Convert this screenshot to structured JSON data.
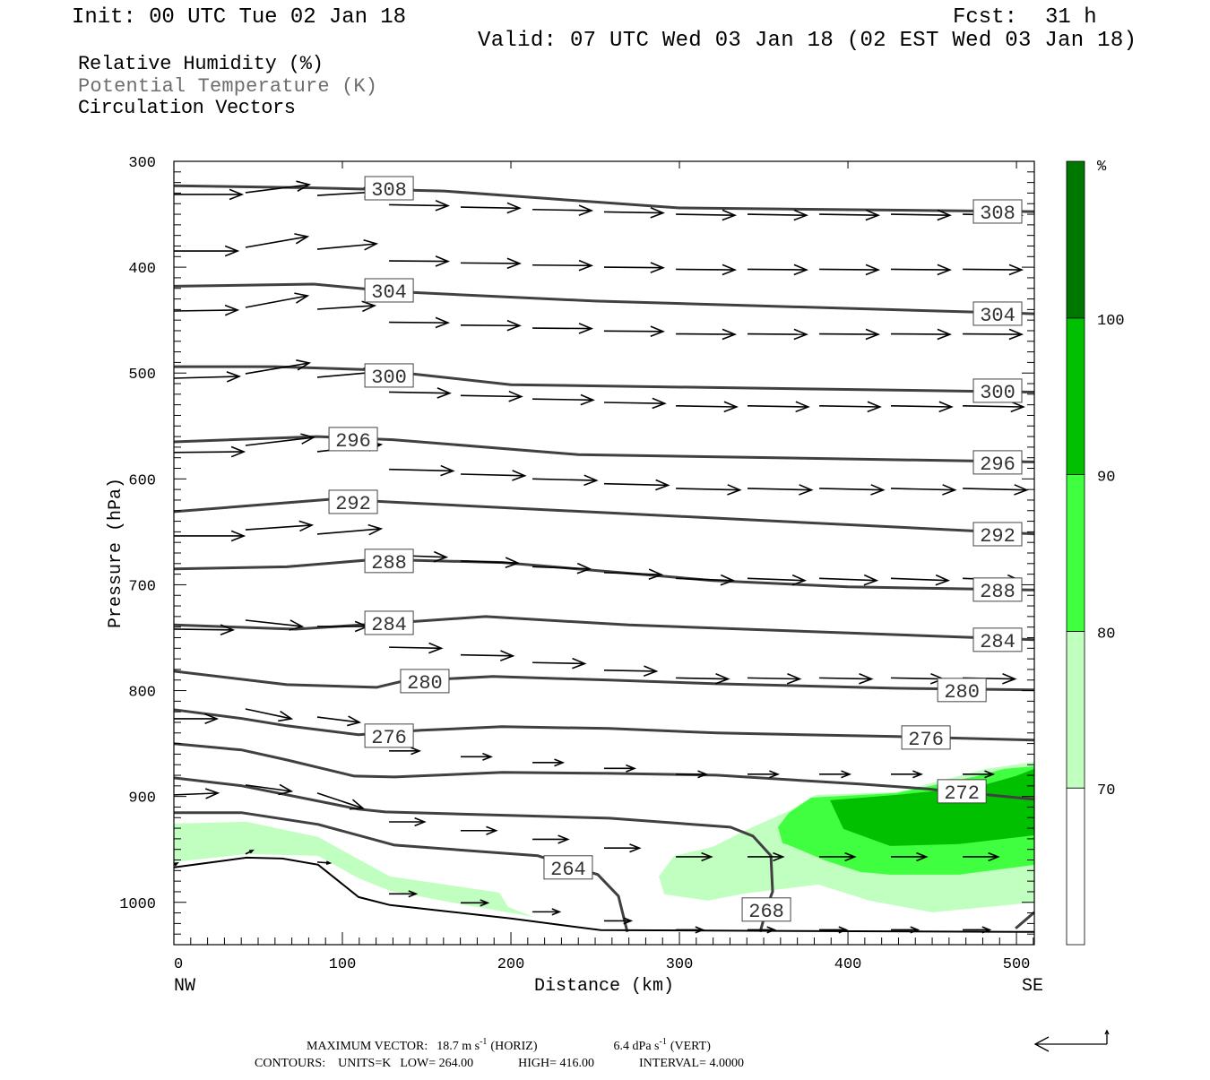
{
  "header": {
    "init": "Init: 00 UTC Tue 02 Jan 18",
    "fcst_label": "Fcst:",
    "fcst_value": "31 h",
    "valid": "Valid: 07 UTC Wed 03 Jan 18 (02 EST Wed 03 Jan 18)"
  },
  "legend": {
    "rh": "Relative Humidity (%)",
    "theta": "Potential Temperature (K)",
    "vectors": "Circulation Vectors"
  },
  "colors": {
    "theta_line": "#404040",
    "terrain_line": "#000000",
    "vector": "#000000",
    "legend_gray": "#6e6e6e"
  },
  "chart_data": {
    "type": "contour",
    "title": "",
    "xlabel": "Distance (km)",
    "ylabel": "Pressure (hPa)",
    "xlim": [
      0,
      510.6
    ],
    "ylim": [
      300,
      1040
    ],
    "x_ticks": [
      "0",
      "100",
      "200",
      "300",
      "400",
      "500"
    ],
    "x_tick_values": [
      0,
      100,
      200,
      300,
      400,
      500
    ],
    "y_ticks": [
      "300",
      "400",
      "500",
      "600",
      "700",
      "800",
      "900",
      "1000"
    ],
    "y_tick_values": [
      300,
      400,
      500,
      600,
      700,
      800,
      900,
      1000
    ],
    "x_end_left": "NW",
    "x_end_right": "SE",
    "contours": [
      {
        "value": 308,
        "points": [
          [
            0,
            323
          ],
          [
            80,
            325
          ],
          [
            160,
            328
          ],
          [
            220,
            335
          ],
          [
            300,
            344
          ],
          [
            510.6,
            347.5
          ]
        ]
      },
      {
        "value": 304,
        "points": [
          [
            0,
            418
          ],
          [
            83,
            416
          ],
          [
            130,
            423
          ],
          [
            250,
            432
          ],
          [
            510.6,
            444
          ]
        ]
      },
      {
        "value": 300,
        "points": [
          [
            0,
            494
          ],
          [
            60,
            494
          ],
          [
            120,
            497
          ],
          [
            200,
            511
          ],
          [
            510.6,
            518
          ]
        ]
      },
      {
        "value": 296,
        "points": [
          [
            0,
            565
          ],
          [
            85,
            560
          ],
          [
            130,
            563
          ],
          [
            240,
            577
          ],
          [
            510.6,
            584
          ]
        ]
      },
      {
        "value": 292,
        "points": [
          [
            0,
            631
          ],
          [
            95,
            619
          ],
          [
            130,
            622
          ],
          [
            510.6,
            652
          ]
        ]
      },
      {
        "value": 288,
        "points": [
          [
            0,
            685
          ],
          [
            67,
            683
          ],
          [
            120,
            676
          ],
          [
            195,
            679
          ],
          [
            320,
            696
          ],
          [
            400,
            702
          ],
          [
            510.6,
            705
          ]
        ]
      },
      {
        "value": 284,
        "points": [
          [
            0,
            738
          ],
          [
            72,
            742
          ],
          [
            130,
            736
          ],
          [
            185,
            730
          ],
          [
            270,
            738
          ],
          [
            510.6,
            752
          ]
        ]
      },
      {
        "value": 280,
        "points": [
          [
            0,
            781.7
          ],
          [
            67,
            794.4
          ],
          [
            120.2,
            796.9
          ],
          [
            136,
            791
          ],
          [
            189.4,
            786.7
          ],
          [
            258.5,
            790.1
          ],
          [
            322,
            793.5
          ],
          [
            428,
            797.8
          ],
          [
            510.6,
            799.4
          ]
        ]
      },
      {
        "value": 276,
        "points": [
          [
            0,
            818
          ],
          [
            40.4,
            826.4
          ],
          [
            67,
            833.2
          ],
          [
            109.6,
            841.7
          ],
          [
            146.8,
            837.5
          ],
          [
            194.7,
            834.1
          ],
          [
            258.5,
            835.8
          ],
          [
            322.3,
            840
          ],
          [
            428.7,
            843.4
          ],
          [
            510.6,
            846.8
          ]
        ]
      },
      {
        "value": 272,
        "points": [
          [
            0,
            850.2
          ],
          [
            40.4,
            856.1
          ],
          [
            67,
            865.5
          ],
          [
            107,
            880.7
          ],
          [
            131,
            881.6
          ],
          [
            195,
            877.3
          ],
          [
            258.5,
            878.2
          ],
          [
            322,
            879.9
          ],
          [
            407,
            888.3
          ],
          [
            445,
            892.6
          ],
          [
            510.6,
            902.7
          ]
        ]
      },
      {
        "value": 268,
        "points": [
          [
            0,
            882.4
          ],
          [
            40.4,
            890
          ],
          [
            109.6,
            912
          ],
          [
            125.5,
            914.6
          ],
          [
            258.5,
            920.5
          ],
          [
            330.3,
            929
          ],
          [
            343.6,
            937.4
          ],
          [
            354.3,
            956
          ],
          [
            355.3,
            989.9
          ],
          [
            354.3,
            994.1
          ],
          [
            351.6,
            1006.8
          ],
          [
            347.9,
            1028
          ]
        ]
      },
      {
        "value": 264,
        "points": [
          [
            0,
            915.4
          ],
          [
            40.4,
            915.4
          ],
          [
            85.6,
            926.4
          ],
          [
            130.9,
            945.9
          ],
          [
            216,
            956
          ],
          [
            251.6,
            973.8
          ],
          [
            263.8,
            994.1
          ],
          [
            269.1,
            1028
          ]
        ]
      },
      {
        "value": 264,
        "points": [
          [
            499.5,
            1024.7
          ],
          [
            510.6,
            1009.4
          ]
        ]
      }
    ],
    "contour_labels": [
      {
        "text": "308",
        "km": 127.7,
        "p": 325.4
      },
      {
        "text": "308",
        "km": 488.8,
        "p": 347.4
      },
      {
        "text": "304",
        "km": 127.7,
        "p": 421.9
      },
      {
        "text": "304",
        "km": 488.8,
        "p": 443.9
      },
      {
        "text": "300",
        "km": 127.7,
        "p": 502.3
      },
      {
        "text": "300",
        "km": 488.8,
        "p": 516.7
      },
      {
        "text": "296",
        "km": 106.4,
        "p": 562.4
      },
      {
        "text": "296",
        "km": 488.8,
        "p": 584.4
      },
      {
        "text": "292",
        "km": 106.4,
        "p": 621.7
      },
      {
        "text": "292",
        "km": 488.8,
        "p": 652.2
      },
      {
        "text": "288",
        "km": 127.7,
        "p": 677.5
      },
      {
        "text": "288",
        "km": 488.8,
        "p": 704.6
      },
      {
        "text": "284",
        "km": 127.7,
        "p": 736.0
      },
      {
        "text": "284",
        "km": 488.8,
        "p": 752.0
      },
      {
        "text": "280",
        "km": 148.9,
        "p": 791.0
      },
      {
        "text": "280",
        "km": 467.6,
        "p": 799.4
      },
      {
        "text": "276",
        "km": 127.7,
        "p": 842.6
      },
      {
        "text": "276",
        "km": 446.3,
        "p": 844.3
      },
      {
        "text": "272",
        "km": 467.6,
        "p": 895.1
      },
      {
        "text": "268",
        "km": 351.6,
        "p": 1006.8
      },
      {
        "text": "264",
        "km": 234.0,
        "p": 967.0
      }
    ],
    "terrain": [
      [
        0,
        967
      ],
      [
        43.1,
        957.8
      ],
      [
        64.4,
        958.6
      ],
      [
        85.6,
        964.5
      ],
      [
        109.6,
        995
      ],
      [
        128.2,
        1002.6
      ],
      [
        200,
        1015.3
      ],
      [
        253.2,
        1026.3
      ],
      [
        510.6,
        1028
      ]
    ],
    "rh_fill": [
      {
        "range": [
          70,
          80
        ],
        "color": "#c0ffc0",
        "polygon": [
          [
            0,
            925.6
          ],
          [
            43.1,
            923.9
          ],
          [
            85.6,
            938.3
          ],
          [
            128.2,
            975.6
          ],
          [
            193.1,
            990.8
          ],
          [
            198.4,
            1004.4
          ],
          [
            213.3,
            1013.7
          ],
          [
            173.4,
            1002.7
          ],
          [
            128.2,
            989.1
          ],
          [
            109.6,
            977.3
          ],
          [
            85.6,
            956.1
          ],
          [
            43.1,
            954.4
          ],
          [
            0,
            962
          ]
        ]
      },
      {
        "range": [
          70,
          80
        ],
        "color": "#c0ffc0",
        "polygon": [
          [
            287.8,
            975.6
          ],
          [
            296.8,
            956.1
          ],
          [
            319.7,
            947.6
          ],
          [
            341,
            930.7
          ],
          [
            364.9,
            913.8
          ],
          [
            380.9,
            898.5
          ],
          [
            428.7,
            896
          ],
          [
            481.9,
            874
          ],
          [
            510.6,
            867.2
          ],
          [
            510.6,
            1000.1
          ],
          [
            450,
            1009.4
          ],
          [
            412.8,
            998.4
          ],
          [
            382.4,
            983.2
          ],
          [
            338.3,
            991.7
          ],
          [
            317,
            998.4
          ],
          [
            291,
            992.5
          ]
        ]
      },
      {
        "range": [
          80,
          90
        ],
        "color": "#40ff40",
        "polygon": [
          [
            358.5,
            929
          ],
          [
            364.9,
            915.5
          ],
          [
            378.2,
            901.1
          ],
          [
            428.7,
            896.8
          ],
          [
            476.6,
            880.7
          ],
          [
            492.6,
            874
          ],
          [
            510.6,
            871.4
          ],
          [
            510.6,
            964.6
          ],
          [
            466,
            973.9
          ],
          [
            425,
            973.9
          ],
          [
            407.4,
            971.3
          ],
          [
            386.2,
            960.3
          ],
          [
            364.9,
            945.9
          ],
          [
            361.2,
            944.2
          ]
        ]
      },
      {
        "range": [
          90,
          100
        ],
        "color": "#00c000",
        "polygon": [
          [
            389.4,
            903.6
          ],
          [
            428.7,
            898.5
          ],
          [
            476.6,
            890.9
          ],
          [
            499.5,
            880.8
          ],
          [
            510.6,
            874
          ],
          [
            510.6,
            936.6
          ],
          [
            466,
            945
          ],
          [
            425,
            946.8
          ],
          [
            397.3,
            930.7
          ]
        ]
      }
    ],
    "vectors_grid": {
      "columns_km": [
        127.7,
        170.2,
        212.8,
        255.3,
        297.9,
        340.4,
        383,
        425.5,
        468.1
      ],
      "rows": [
        {
          "tail_p": [
            341,
            350
          ],
          "dx_km": 35,
          "dp": 1
        },
        {
          "tail_p": [
            394,
            402
          ],
          "dx_km": 35,
          "dp": 0.5
        },
        {
          "tail_p": [
            452,
            463
          ],
          "dx_km": 35,
          "dp": 0.5
        },
        {
          "tail_p": [
            518,
            531
          ],
          "dx_km": 36,
          "dp": 1
        },
        {
          "tail_p": [
            591,
            609
          ],
          "dx_km": 38,
          "dp": 1.5
        },
        {
          "tail_p": [
            672,
            694
          ],
          "dx_km": 34,
          "dp": 2
        },
        {
          "tail_p": [
            759,
            788
          ],
          "dx_km": 31,
          "dp": 1
        },
        {
          "tail_p": [
            857,
            879
          ],
          "dx_km": 18,
          "dp": 0
        },
        {
          "tail_p": [
            924,
            957
          ],
          "dx_km": 21,
          "dp": 0
        },
        {
          "tail_p": [
            992,
            1026
          ],
          "dx_km": 16,
          "dp": 0
        }
      ]
    },
    "vectors_left": [
      [
        0,
        331.3,
        40.4,
        331.3
      ],
      [
        42.5,
        329.6,
        80.3,
        322
      ],
      [
        85.1,
        332.2,
        120.2,
        328.8
      ],
      [
        0,
        384.7,
        37.8,
        384.7
      ],
      [
        42.5,
        381.3,
        79.3,
        371.1
      ],
      [
        85.1,
        383,
        120.2,
        377.9
      ],
      [
        0,
        441.4,
        37.8,
        440.5
      ],
      [
        42.5,
        438,
        79.3,
        427
      ],
      [
        85.1,
        439.7,
        119.1,
        436.3
      ],
      [
        0,
        504.9,
        38.8,
        503.2
      ],
      [
        42.5,
        500.6,
        80.3,
        490.5
      ],
      [
        85.1,
        504,
        120.2,
        499
      ],
      [
        0,
        575,
        41.5,
        574.3
      ],
      [
        42.5,
        568.4,
        82.9,
        560.8
      ],
      [
        85.1,
        574.3,
        122.9,
        567.5
      ],
      [
        0,
        653.9,
        41.5,
        653.9
      ],
      [
        42.5,
        648,
        81.9,
        643.7
      ],
      [
        85.1,
        652.2,
        122.9,
        647.1
      ],
      [
        0,
        741.9,
        35.1,
        742.7
      ],
      [
        42.5,
        733.5,
        76.1,
        739.4
      ],
      [
        85.1,
        739.4,
        114.9,
        739.4
      ],
      [
        0,
        826.6,
        25.5,
        826.6
      ],
      [
        42.5,
        817.3,
        69.7,
        826.6
      ],
      [
        85.1,
        825,
        110.1,
        830
      ],
      [
        0,
        898.5,
        26.1,
        896.8
      ],
      [
        42.5,
        889.2,
        69.7,
        895.1
      ],
      [
        85.1,
        896.8,
        112.2,
        911.2
      ],
      [
        0,
        964.6,
        2.1,
        962.9
      ],
      [
        42.5,
        954.4,
        46.8,
        951
      ],
      [
        85.1,
        962,
        92.6,
        962.9
      ]
    ],
    "colorbar": {
      "unit": "%",
      "range": [
        60,
        110
      ],
      "levels": [
        "70",
        "80",
        "90",
        "100"
      ],
      "level_values": [
        70,
        80,
        90,
        100
      ],
      "bands": [
        {
          "from": 60,
          "to": 70,
          "color": "#ffffff"
        },
        {
          "from": 70,
          "to": 80,
          "color": "#c0ffc0"
        },
        {
          "from": 80,
          "to": 90,
          "color": "#40ff40"
        },
        {
          "from": 90,
          "to": 100,
          "color": "#00c000"
        },
        {
          "from": 100,
          "to": 110,
          "color": "#007800"
        }
      ]
    }
  },
  "footer": {
    "max_vector_label": "MAXIMUM VECTOR:",
    "horiz_value": "18.7 m s",
    "horiz_exp": "-1",
    "horiz_tag": "(HORIZ)",
    "vert_value": "6.4 dPa s",
    "vert_exp": "-1",
    "vert_tag": "(VERT)",
    "contours_label": "CONTOURS:",
    "units": "UNITS=K",
    "low": "LOW=  264.00",
    "high": "HIGH=  416.00",
    "interval": "INTERVAL=   4.0000"
  }
}
